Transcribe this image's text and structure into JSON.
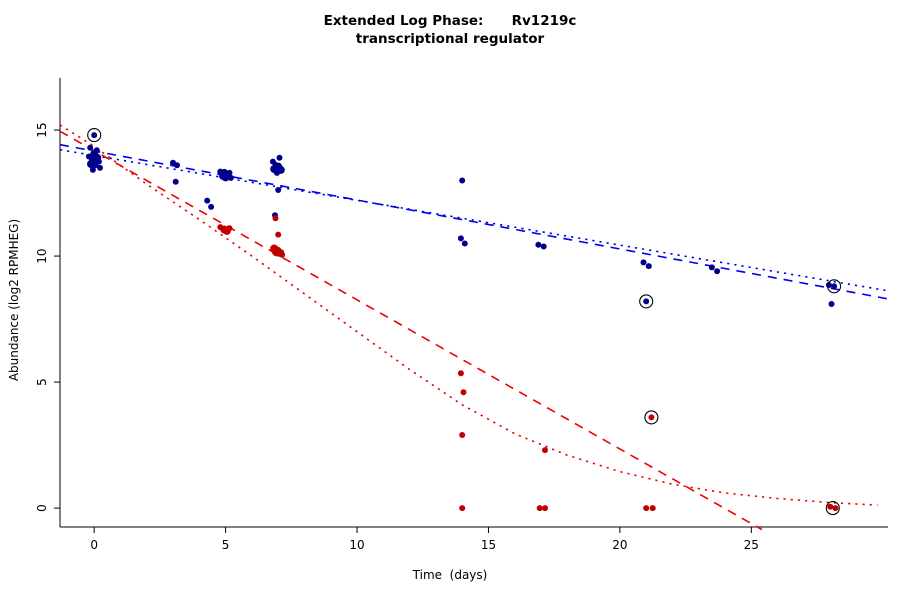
{
  "title": {
    "line1": "Extended Log Phase:      Rv1219c",
    "line2": "transcriptional regulator"
  },
  "chart_data": {
    "type": "scatter",
    "title": "Extended Log Phase: Rv1219c transcriptional regulator",
    "xlabel": "Time  (days)",
    "ylabel": "Abundance  (log2 RPMHEG)",
    "xlim": [
      -1.3,
      30.2
    ],
    "ylim": [
      -0.75,
      17.7
    ],
    "x_ticks": [
      0,
      5,
      10,
      15,
      20,
      25
    ],
    "y_ticks": [
      0,
      5,
      10,
      15
    ],
    "grid": false,
    "legend": "none",
    "series": [
      {
        "name": "blue-points",
        "color": "#00008B",
        "points": [
          [
            -0.15,
            14.3,
            3
          ],
          [
            0.1,
            14.2,
            3
          ],
          [
            0,
            14.05,
            4
          ],
          [
            -0.2,
            13.95,
            3
          ],
          [
            0.12,
            13.9,
            4
          ],
          [
            -0.05,
            13.8,
            4
          ],
          [
            0.18,
            13.75,
            3
          ],
          [
            -0.12,
            13.65,
            4
          ],
          [
            0.05,
            13.6,
            3
          ],
          [
            0.22,
            13.5,
            3
          ],
          [
            -0.05,
            13.42,
            3
          ],
          [
            0,
            14.8,
            3
          ],
          [
            3.0,
            13.7,
            3
          ],
          [
            3.15,
            13.6,
            3
          ],
          [
            3.1,
            12.95,
            3
          ],
          [
            4.3,
            12.2,
            3
          ],
          [
            4.45,
            11.95,
            3
          ],
          [
            4.8,
            13.35,
            3
          ],
          [
            4.95,
            13.3,
            4
          ],
          [
            5.05,
            13.25,
            3
          ],
          [
            5.15,
            13.3,
            3
          ],
          [
            4.9,
            13.18,
            4
          ],
          [
            5.0,
            13.12,
            4
          ],
          [
            5.2,
            13.1,
            3
          ],
          [
            6.8,
            13.75,
            3
          ],
          [
            6.9,
            13.62,
            3
          ],
          [
            7.05,
            13.9,
            3
          ],
          [
            7.0,
            13.55,
            4
          ],
          [
            6.85,
            13.45,
            4
          ],
          [
            7.1,
            13.42,
            4
          ],
          [
            6.95,
            13.3,
            3
          ],
          [
            7.0,
            12.62,
            3
          ],
          [
            6.88,
            11.62,
            3
          ],
          [
            14,
            13.0,
            3
          ],
          [
            13.95,
            10.7,
            3
          ],
          [
            14.1,
            10.5,
            3
          ],
          [
            16.9,
            10.45,
            3
          ],
          [
            17.1,
            10.38,
            3
          ],
          [
            20.9,
            9.75,
            3
          ],
          [
            21.1,
            9.6,
            3
          ],
          [
            21,
            8.2,
            3
          ],
          [
            23.5,
            9.55,
            3
          ],
          [
            23.7,
            9.4,
            3
          ],
          [
            27.95,
            8.85,
            3
          ],
          [
            28.15,
            8.8,
            3
          ],
          [
            28.05,
            8.1,
            3
          ]
        ]
      },
      {
        "name": "red-points",
        "color": "#C00000",
        "points": [
          [
            4.8,
            11.15,
            3
          ],
          [
            4.95,
            11.05,
            4
          ],
          [
            5.05,
            11.0,
            4
          ],
          [
            5.15,
            11.1,
            3
          ],
          [
            6.9,
            11.5,
            3
          ],
          [
            7.0,
            10.85,
            3
          ],
          [
            6.85,
            10.3,
            4
          ],
          [
            6.95,
            10.18,
            5
          ],
          [
            7.08,
            10.12,
            4
          ],
          [
            7.15,
            10.05,
            3
          ],
          [
            13.95,
            5.35,
            3
          ],
          [
            14.05,
            4.6,
            3
          ],
          [
            14,
            2.9,
            3
          ],
          [
            14,
            0,
            3
          ],
          [
            17.15,
            2.3,
            3
          ],
          [
            16.95,
            0,
            3
          ],
          [
            17.15,
            0,
            3
          ],
          [
            21.2,
            3.6,
            3
          ],
          [
            21.0,
            0,
            3
          ],
          [
            21.25,
            0,
            3
          ],
          [
            28.0,
            0.05,
            3
          ],
          [
            28.2,
            0,
            3
          ]
        ]
      }
    ],
    "circled_points": [
      [
        0,
        14.8
      ],
      [
        21,
        8.2
      ],
      [
        21.2,
        3.6
      ],
      [
        28.15,
        8.8
      ],
      [
        28.1,
        0
      ]
    ],
    "lines": [
      {
        "name": "blue-trend-dashed",
        "color": "#0000EE",
        "style": "dashed",
        "points": [
          [
            -1.3,
            14.42
          ],
          [
            30.2,
            8.3
          ]
        ]
      },
      {
        "name": "blue-trend-dotted",
        "color": "#0000EE",
        "style": "dotted",
        "points": [
          [
            -1.3,
            14.22
          ],
          [
            30.2,
            8.62
          ]
        ]
      },
      {
        "name": "red-trend-dashed",
        "color": "#EE0000",
        "style": "dashed",
        "points": [
          [
            -1.3,
            14.95
          ],
          [
            25.4,
            -0.85
          ]
        ]
      },
      {
        "name": "red-trend-dotted",
        "color": "#EE0000",
        "style": "dotted",
        "points": [
          [
            -1.3,
            15.2
          ],
          [
            0,
            14.35
          ],
          [
            2,
            12.85
          ],
          [
            4,
            11.45
          ],
          [
            6,
            10.0
          ],
          [
            8,
            8.5
          ],
          [
            10,
            7.0
          ],
          [
            12,
            5.5
          ],
          [
            14,
            4.1
          ],
          [
            16,
            2.95
          ],
          [
            18,
            2.1
          ],
          [
            20,
            1.45
          ],
          [
            22,
            0.95
          ],
          [
            24,
            0.6
          ],
          [
            26,
            0.38
          ],
          [
            28,
            0.22
          ],
          [
            29.8,
            0.12
          ]
        ]
      }
    ]
  }
}
